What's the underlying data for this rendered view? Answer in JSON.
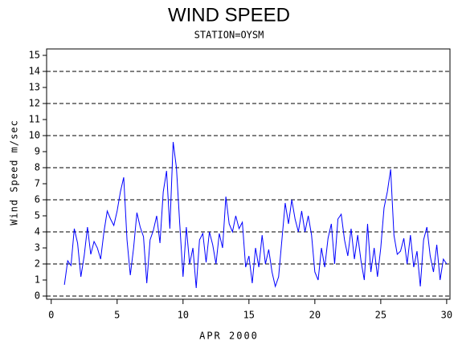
{
  "chart_data": {
    "type": "line",
    "title": "WIND SPEED",
    "subtitle": "STATION=OYSM",
    "x_label": "APR 2000",
    "y_label": "Wind Speed m/sec",
    "xlim": [
      -0.35,
      30.25
    ],
    "xticks": [
      0,
      5,
      10,
      15,
      20,
      25,
      30
    ],
    "ylim": [
      -0.2,
      15.4
    ],
    "yticks": [
      0,
      1,
      2,
      3,
      4,
      5,
      6,
      7,
      8,
      9,
      10,
      11,
      12,
      13,
      14,
      15
    ],
    "ygrid": [
      0,
      2,
      4,
      6,
      8,
      10,
      12,
      14
    ],
    "series": [
      {
        "color": "#0000ff",
        "x": [
          1,
          1.25,
          1.5,
          1.75,
          2,
          2.25,
          2.5,
          2.75,
          3,
          3.25,
          3.5,
          3.75,
          4,
          4.25,
          4.5,
          4.75,
          5,
          5.25,
          5.5,
          5.75,
          6,
          6.25,
          6.5,
          6.75,
          7,
          7.25,
          7.5,
          7.75,
          8,
          8.25,
          8.5,
          8.75,
          9,
          9.25,
          9.5,
          9.75,
          10,
          10.25,
          10.5,
          10.75,
          11,
          11.25,
          11.5,
          11.75,
          12,
          12.25,
          12.5,
          12.75,
          13,
          13.25,
          13.5,
          13.75,
          14,
          14.25,
          14.5,
          14.75,
          15,
          15.25,
          15.5,
          15.75,
          16,
          16.25,
          16.5,
          16.75,
          17,
          17.25,
          17.5,
          17.75,
          18,
          18.25,
          18.5,
          18.75,
          19,
          19.25,
          19.5,
          19.75,
          20,
          20.25,
          20.5,
          20.75,
          21,
          21.25,
          21.5,
          21.75,
          22,
          22.25,
          22.5,
          22.75,
          23,
          23.25,
          23.5,
          23.75,
          24,
          24.25,
          24.5,
          24.75,
          25,
          25.25,
          25.5,
          25.75,
          26,
          26.25,
          26.5,
          26.75,
          27,
          27.25,
          27.5,
          27.75,
          28,
          28.25,
          28.5,
          28.75,
          29,
          29.25,
          29.5,
          29.75,
          30
        ],
        "values": [
          0.7,
          2.2,
          1.9,
          4.2,
          3.3,
          1.2,
          2.5,
          4.3,
          2.6,
          3.4,
          3.0,
          2.3,
          4.0,
          5.3,
          4.8,
          4.4,
          5.3,
          6.5,
          7.4,
          3.5,
          1.3,
          3.0,
          5.2,
          4.3,
          3.7,
          0.8,
          3.5,
          4.1,
          5.0,
          3.3,
          6.5,
          7.8,
          4.2,
          9.6,
          8.0,
          4.5,
          1.2,
          4.3,
          2.0,
          3.0,
          0.5,
          3.5,
          3.9,
          2.1,
          4.0,
          3.2,
          2.0,
          3.9,
          3.0,
          6.2,
          4.5,
          4.0,
          5.0,
          4.2,
          4.6,
          1.8,
          2.5,
          0.8,
          3.0,
          1.8,
          3.8,
          2.0,
          2.9,
          1.5,
          0.6,
          1.2,
          3.5,
          5.8,
          4.5,
          6.0,
          4.8,
          4.0,
          5.3,
          4.0,
          5.0,
          3.8,
          1.5,
          1.0,
          3.0,
          1.8,
          3.6,
          4.5,
          2.0,
          4.8,
          5.1,
          3.5,
          2.5,
          4.2,
          2.3,
          3.8,
          2.2,
          1.0,
          4.5,
          1.5,
          3.0,
          1.2,
          3.0,
          5.5,
          6.5,
          7.9,
          3.8,
          2.6,
          2.8,
          3.6,
          2.0,
          3.8,
          1.8,
          2.8,
          0.6,
          3.5,
          4.3,
          2.5,
          1.5,
          3.2,
          1.0,
          2.3,
          2.0
        ]
      }
    ]
  }
}
